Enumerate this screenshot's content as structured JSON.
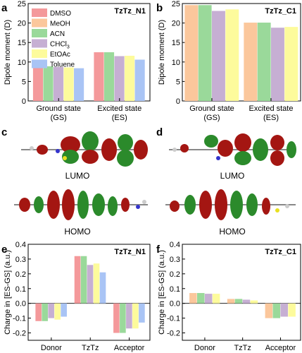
{
  "series_colors": {
    "DMSO": "#f4999b",
    "MeOH": "#fbc79c",
    "ACN": "#9ad99a",
    "CHCl3": "#c6afd3",
    "EtOAc": "#fdfb9c",
    "Toluene": "#a9c4f5"
  },
  "legend": {
    "entries": [
      {
        "key": "DMSO",
        "label": "DMSO"
      },
      {
        "key": "MeOH",
        "label": "MeOH"
      },
      {
        "key": "ACN",
        "label": "ACN"
      },
      {
        "key": "CHCl3",
        "label": "CHCl",
        "sub": "3"
      },
      {
        "key": "EtOAc",
        "label": "EtOAc"
      },
      {
        "key": "Toluene",
        "label": "Toluene"
      }
    ]
  },
  "orbital_panels": [
    {
      "letter": "c",
      "lumo_label": "LUMO",
      "homo_label": "HOMO"
    },
    {
      "letter": "d",
      "lumo_label": "LUMO",
      "homo_label": "HOMO"
    }
  ],
  "chart_data": [
    {
      "panel": "a",
      "type": "bar",
      "title": "TzTz_N1",
      "ylabel": "Dipole moment (D)",
      "ylim": [
        0,
        25
      ],
      "yticks": [
        0,
        5,
        10,
        15,
        20,
        25
      ],
      "categories": [
        [
          "Ground state",
          "(GS)"
        ],
        [
          "Excited state",
          "(ES)"
        ]
      ],
      "series": [
        {
          "name": "DMSO",
          "key": "DMSO",
          "values": [
            8.9,
            12.5
          ]
        },
        {
          "name": "ACN",
          "key": "ACN",
          "values": [
            8.9,
            12.5
          ]
        },
        {
          "name": "CHCl3",
          "key": "CHCl3",
          "values": [
            8.7,
            11.5
          ]
        },
        {
          "name": "EtOAc",
          "key": "EtOAc",
          "values": [
            8.6,
            11.6
          ]
        },
        {
          "name": "Toluene",
          "key": "Toluene",
          "values": [
            8.4,
            10.6
          ]
        }
      ],
      "legend_position": "top-left"
    },
    {
      "panel": "b",
      "type": "bar",
      "title": "TzTz_C1",
      "ylabel": "Dipole moment (D)",
      "ylim": [
        0,
        25
      ],
      "yticks": [
        0,
        5,
        10,
        15,
        20,
        25
      ],
      "categories": [
        [
          "Ground state",
          "(GS)"
        ],
        [
          "Excited state",
          "(ES)"
        ]
      ],
      "series": [
        {
          "name": "MeOH",
          "key": "MeOH",
          "values": [
            24.6,
            20.1
          ]
        },
        {
          "name": "ACN",
          "key": "ACN",
          "values": [
            24.6,
            20.1
          ]
        },
        {
          "name": "CHCl3",
          "key": "CHCl3",
          "values": [
            23.1,
            18.8
          ]
        },
        {
          "name": "EtOAc",
          "key": "EtOAc",
          "values": [
            23.5,
            19.0
          ]
        }
      ]
    },
    {
      "panel": "e",
      "type": "bar",
      "title": "TzTz_N1",
      "ylabel": "Charge in [ES-GS] (a.u.)",
      "ylim": [
        -0.25,
        0.4
      ],
      "yticks": [
        -0.2,
        -0.1,
        0.0,
        0.1,
        0.2,
        0.3,
        0.4
      ],
      "categories": [
        [
          "Donor"
        ],
        [
          "TzTz"
        ],
        [
          "Acceptor"
        ]
      ],
      "series": [
        {
          "name": "DMSO",
          "key": "DMSO",
          "values": [
            -0.12,
            0.32,
            -0.2
          ]
        },
        {
          "name": "ACN",
          "key": "ACN",
          "values": [
            -0.12,
            0.32,
            -0.2
          ]
        },
        {
          "name": "CHCl3",
          "key": "CHCl3",
          "values": [
            -0.1,
            0.26,
            -0.17
          ]
        },
        {
          "name": "EtOAc",
          "key": "EtOAc",
          "values": [
            -0.11,
            0.27,
            -0.17
          ]
        },
        {
          "name": "Toluene",
          "key": "Toluene",
          "values": [
            -0.09,
            0.21,
            -0.13
          ]
        }
      ]
    },
    {
      "panel": "f",
      "type": "bar",
      "title": "TzTz_C1",
      "ylabel": "Charge in [ES-GS] (a.u.)",
      "ylim": [
        -0.25,
        0.4
      ],
      "yticks": [
        -0.2,
        -0.1,
        0.0,
        0.1,
        0.2,
        0.3,
        0.4
      ],
      "categories": [
        [
          "Donor"
        ],
        [
          "TzTz"
        ],
        [
          "Acceptor"
        ]
      ],
      "series": [
        {
          "name": "MeOH",
          "key": "MeOH",
          "values": [
            0.07,
            0.03,
            -0.1
          ]
        },
        {
          "name": "ACN",
          "key": "ACN",
          "values": [
            0.07,
            0.03,
            -0.1
          ]
        },
        {
          "name": "CHCl3",
          "key": "CHCl3",
          "values": [
            0.065,
            0.025,
            -0.09
          ]
        },
        {
          "name": "EtOAc",
          "key": "EtOAc",
          "values": [
            0.065,
            0.02,
            -0.09
          ]
        }
      ]
    }
  ]
}
